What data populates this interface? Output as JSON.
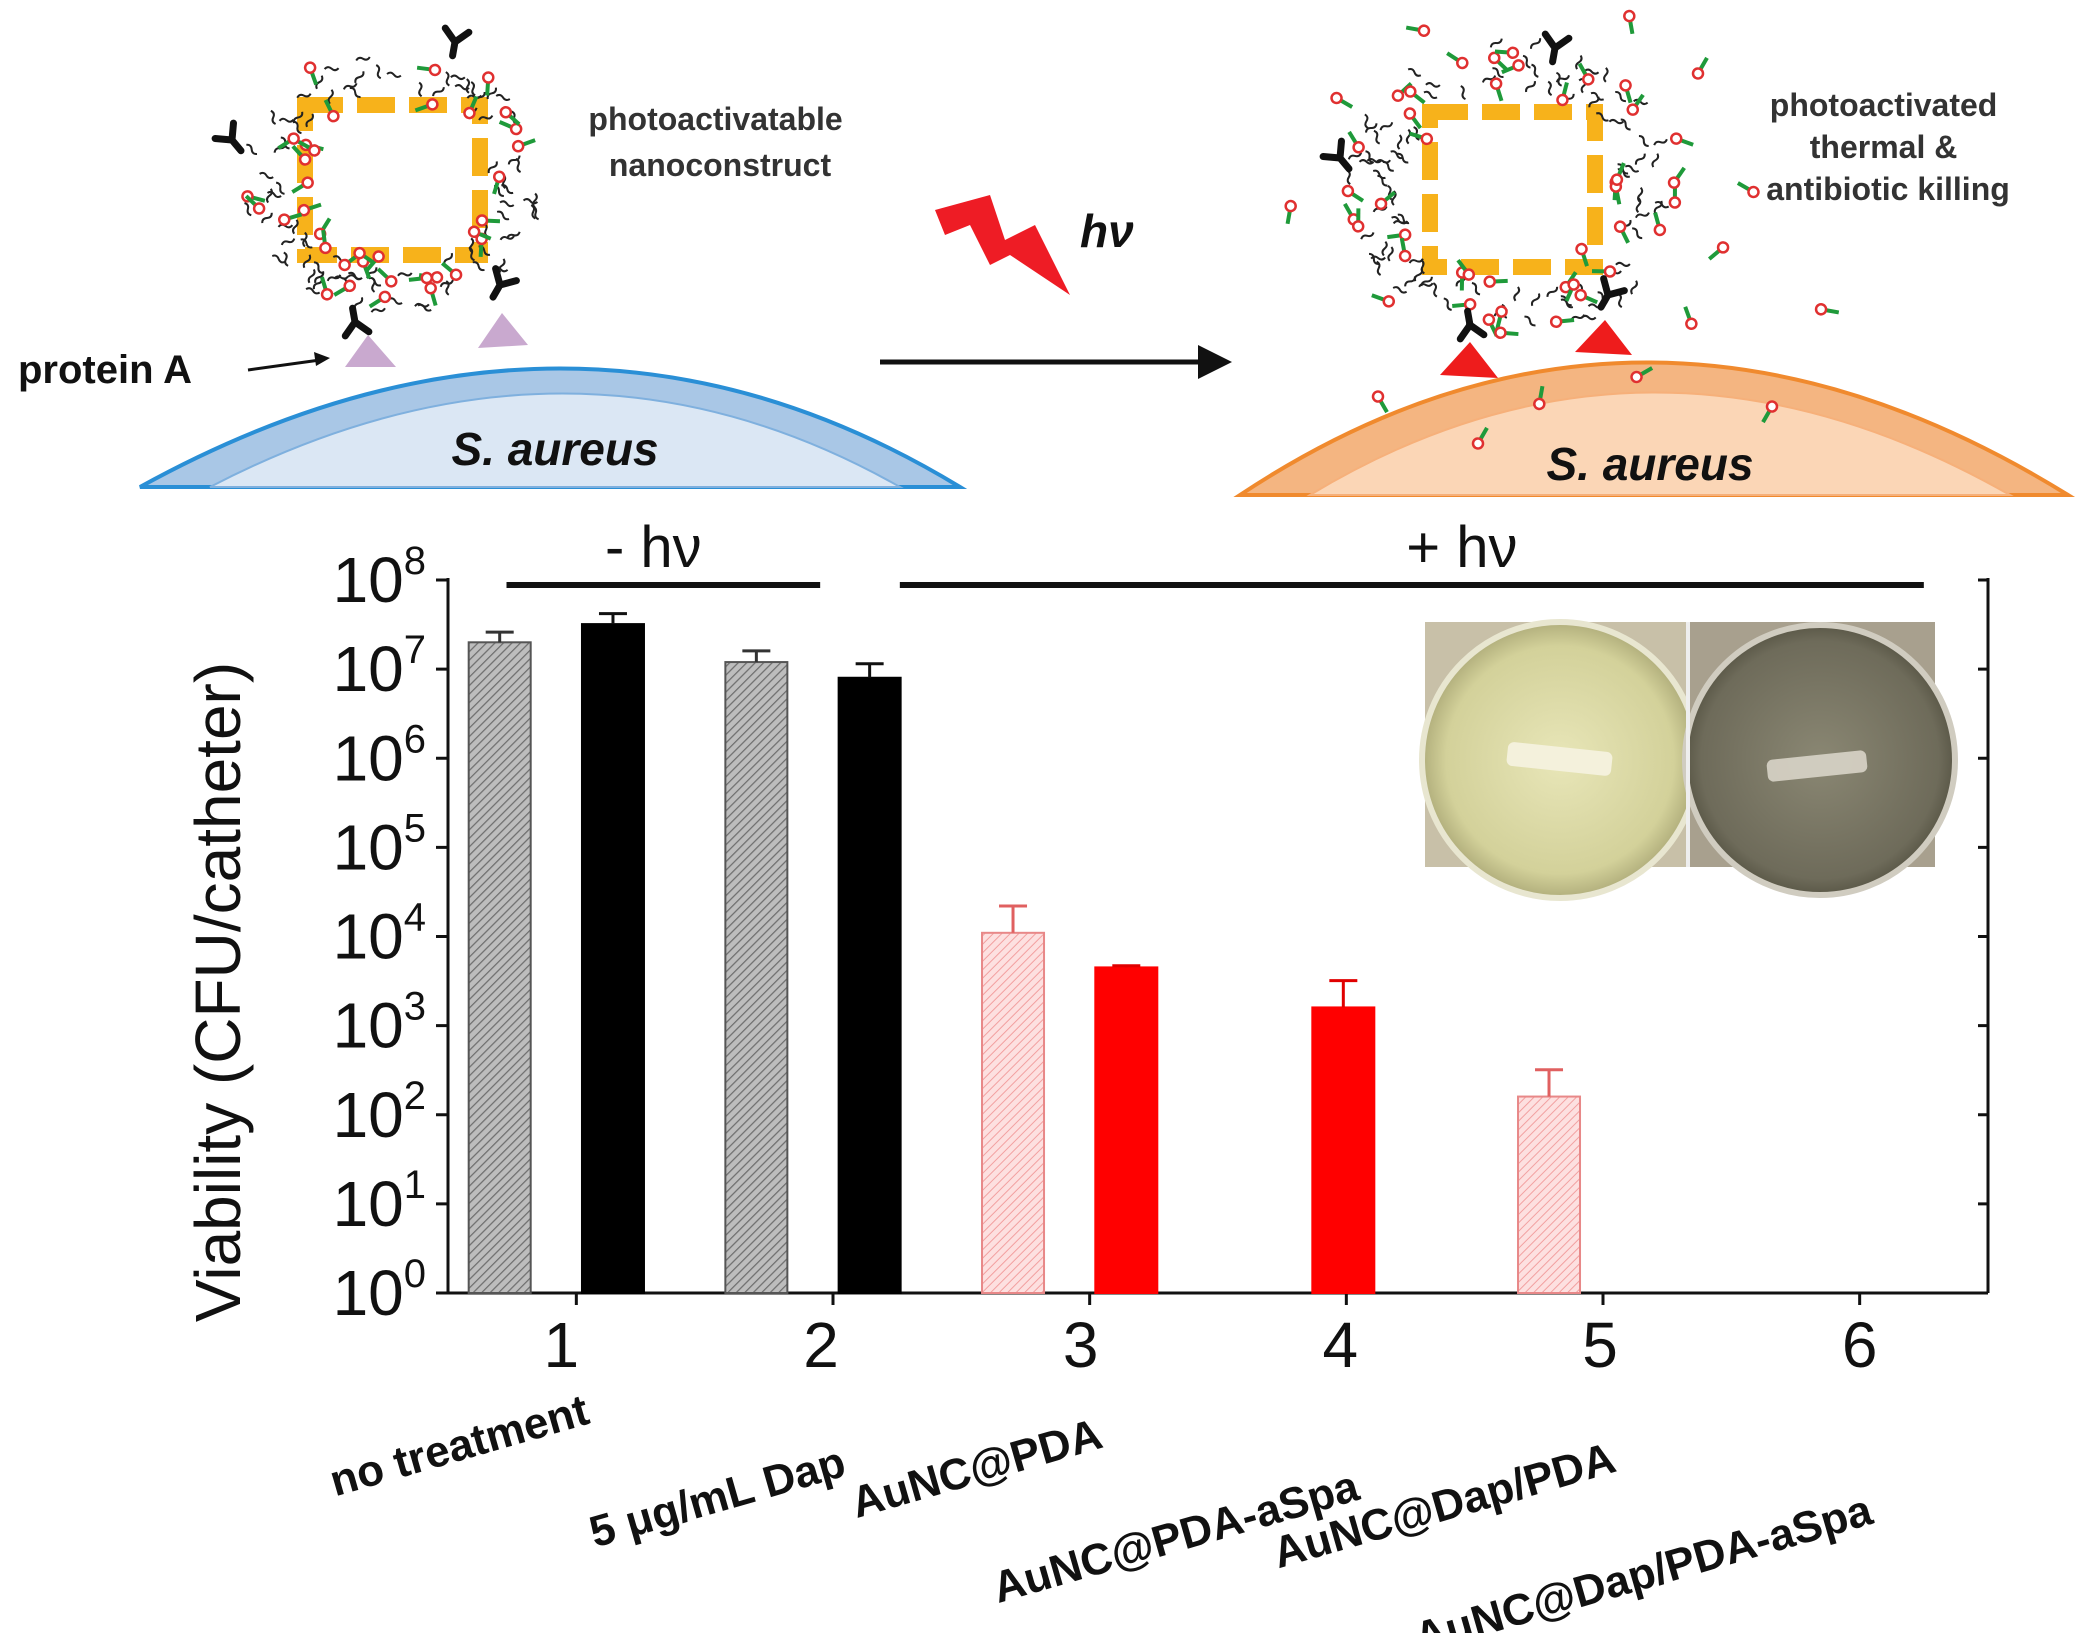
{
  "schematic": {
    "left_label": "photoactivatable nanoconstruct",
    "left_label_lines": [
      "photoactivatable",
      "nanoconstruct"
    ],
    "right_label_lines": [
      "photoactivated",
      "thermal &",
      "antibiotic killing"
    ],
    "protein_label": "protein A",
    "bacterium_left": "S. aureus",
    "bacterium_right": "S. aureus",
    "light_label": "hν",
    "colors": {
      "cell_left_outer": "#a9c7e6",
      "cell_left_inner": "#dbe7f4",
      "cell_left_edge": "#2a8fd6",
      "cell_right_outer": "#f4b581",
      "cell_right_inner": "#fbd6b6",
      "cell_right_edge": "#f08a2e",
      "gold": "#f7b21b",
      "bolt": "#ee1c25",
      "protein_left": "#c9a9cf",
      "protein_right": "#ee1c1c"
    }
  },
  "chart_data": {
    "type": "bar",
    "scale": "log",
    "ylabel": "Viability (CFU/catheter)",
    "ylim": [
      1,
      100000000
    ],
    "yticks": [
      {
        "base": "10",
        "exp": "0",
        "value": 1
      },
      {
        "base": "10",
        "exp": "1",
        "value": 10
      },
      {
        "base": "10",
        "exp": "2",
        "value": 100
      },
      {
        "base": "10",
        "exp": "3",
        "value": 1000
      },
      {
        "base": "10",
        "exp": "4",
        "value": 10000
      },
      {
        "base": "10",
        "exp": "5",
        "value": 100000
      },
      {
        "base": "10",
        "exp": "6",
        "value": 1000000
      },
      {
        "base": "10",
        "exp": "7",
        "value": 10000000
      },
      {
        "base": "10",
        "exp": "8",
        "value": 100000000
      }
    ],
    "categories": [
      "1",
      "2",
      "3",
      "4",
      "5",
      "6"
    ],
    "category_names": [
      "no treatment",
      "5 μg/mL Dap",
      "AuNC@PDA",
      "AuNC@PDA-aSpa",
      "AuNC@Dap/PDA",
      "AuNC@Dap/PDA-aSpa"
    ],
    "group_labels": [
      {
        "text": "- hν",
        "from": 1,
        "to": 2
      },
      {
        "text": "+ hν",
        "from": 3,
        "to": 6
      }
    ],
    "bars": [
      {
        "category": "1",
        "style": "hatched",
        "color": "#8c8c8c",
        "value": 20000000,
        "error_top": 26000000
      },
      {
        "category": "1",
        "style": "solid",
        "color": "#000000",
        "value": 32000000,
        "error_top": 42000000
      },
      {
        "category": "2",
        "style": "hatched",
        "color": "#8c8c8c",
        "value": 12000000,
        "error_top": 16000000
      },
      {
        "category": "2",
        "style": "solid",
        "color": "#000000",
        "value": 8000000,
        "error_top": 11500000
      },
      {
        "category": "3",
        "style": "hatched",
        "color": "#f08080",
        "value": 11000,
        "error_top": 22000
      },
      {
        "category": "3",
        "style": "solid",
        "color": "#ff0000",
        "value": 4500,
        "error_top": 4700
      },
      {
        "category": "4",
        "style": "solid",
        "color": "#ff0000",
        "value": 1600,
        "error_top": 3200
      },
      {
        "category": "5",
        "style": "hatched",
        "color": "#f08080",
        "value": 160,
        "error_top": 320
      }
    ],
    "inset": "photo of two catheter wells"
  }
}
